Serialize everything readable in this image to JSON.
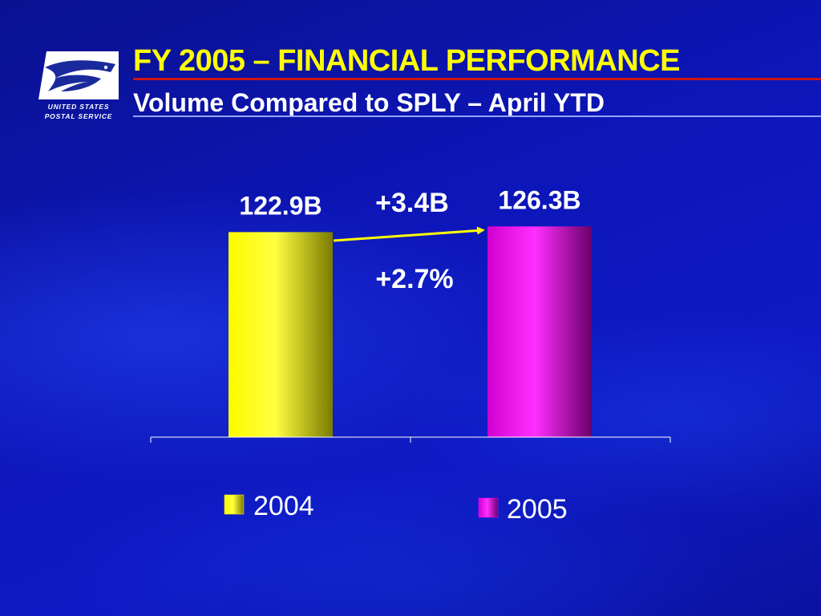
{
  "logo": {
    "line1": "UNITED STATES",
    "line2": "POSTAL SERVICE"
  },
  "title": "FY 2005 – FINANCIAL PERFORMANCE",
  "subtitle": "Volume Compared to SPLY – April YTD",
  "colors": {
    "bar_2004": "#ffff00",
    "bar_2005": "#ff00ff",
    "title": "#ffff00",
    "arrow": "#ffff00"
  },
  "chart_data": {
    "type": "bar",
    "categories": [
      "2004",
      "2005"
    ],
    "values": [
      122.9,
      126.3
    ],
    "data_labels": [
      "122.9B",
      "126.3B"
    ],
    "unit": "B",
    "ylim": [
      0,
      150
    ],
    "grid": false,
    "legend": {
      "entries": [
        "2004",
        "2005"
      ],
      "placement": "bottom"
    },
    "annotations": {
      "change_absolute": "+3.4B",
      "change_percent": "+2.7%"
    }
  }
}
